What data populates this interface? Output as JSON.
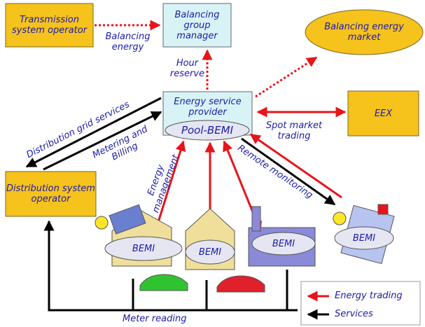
{
  "nodes": {
    "tso": "Transmission system operator",
    "bgm": "Balancing group manager",
    "bem": "Balancing energy market",
    "esp": "Energy service provider",
    "pool": "Pool-BEMI",
    "eex": "EEX",
    "dso": "Distribution system operator",
    "bemi": [
      "BEMI",
      "BEMI",
      "BEMI",
      "BEMI"
    ]
  },
  "edges": {
    "balancing_energy": "Balancing energy",
    "hour_reserve": "Hour reserve",
    "spot_market": "Spot market trading",
    "grid_services": "Distribution grid services",
    "metering": "Metering and Billing",
    "energy_management": "Energy management",
    "remote_monitoring": "Remote monitoring",
    "meter_reading": "Meter reading"
  },
  "legend": {
    "trading": "Energy trading",
    "services": "Services"
  }
}
